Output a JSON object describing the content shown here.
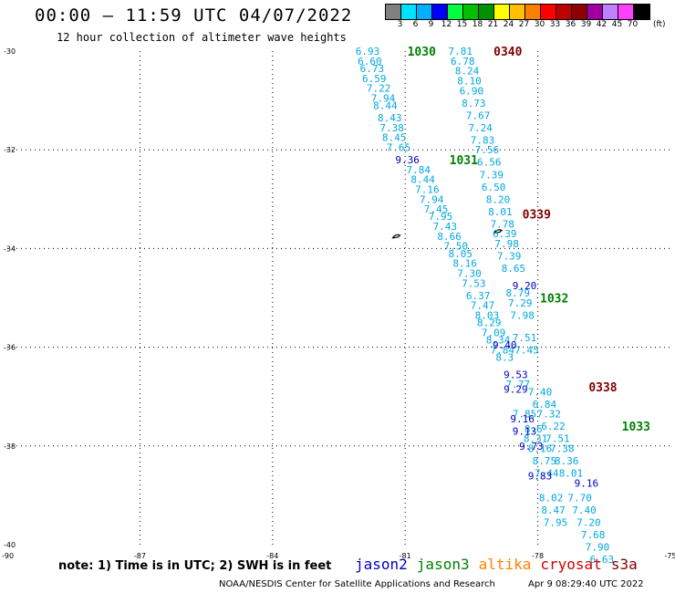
{
  "header": {
    "title": "00:00 — 11:59 UTC 04/07/2022",
    "subtitle": "12 hour collection of altimeter wave heights"
  },
  "color_scale": {
    "labels": [
      "3",
      "6",
      "9",
      "12",
      "15",
      "18",
      "21",
      "24",
      "27",
      "30",
      "33",
      "36",
      "39",
      "42",
      "45",
      "70"
    ],
    "unit": "(ft)",
    "colors": [
      "#808080",
      "#00e0ff",
      "#00b0ff",
      "#0000ff",
      "#00ff40",
      "#00c000",
      "#009000",
      "#ffff00",
      "#ffc000",
      "#ff8000",
      "#ff0000",
      "#c00000",
      "#900000",
      "#a000a0",
      "#c080ff",
      "#ff40ff",
      "#000000"
    ]
  },
  "footer": {
    "note": "note:  1)  Time is in UTC;  2)  SWH is in feet",
    "legend": [
      {
        "name": "jason2",
        "color": "#0000c0"
      },
      {
        "name": "jason3",
        "color": "#008000"
      },
      {
        "name": "altika",
        "color": "#ff8000"
      },
      {
        "name": "cryosat",
        "color": "#d00000"
      },
      {
        "name": "s3a",
        "color": "#800000"
      }
    ],
    "credit": "NOAA/NESDIS Center for Satellite Applications and Research",
    "timestamp": "Apr  9 08:29:40 UTC 2022"
  },
  "chart_data": {
    "type": "scatter",
    "title": "00:00 — 11:59 UTC 04/07/2022",
    "subtitle": "12 hour collection of altimeter wave heights",
    "xlim": [
      -90,
      -75
    ],
    "ylim": [
      -40,
      -30
    ],
    "x_ticks": [
      -90,
      -87,
      -84,
      -81,
      -78,
      -75
    ],
    "y_ticks": [
      -30,
      -32,
      -34,
      -36,
      -38,
      -40
    ],
    "grid": true,
    "coastline_marks": [
      {
        "x": -78.9,
        "y": -33.65
      },
      {
        "x": -81.2,
        "y": -33.75
      }
    ],
    "track_time_labels": [
      {
        "text": "1030",
        "color": "#008000",
        "x": -80.95,
        "y": -30.0
      },
      {
        "text": "0340",
        "color": "#800000",
        "x": -79.0,
        "y": -30.0
      },
      {
        "text": "1031",
        "color": "#008000",
        "x": -80.0,
        "y": -32.2
      },
      {
        "text": "0339",
        "color": "#800000",
        "x": -78.35,
        "y": -33.3
      },
      {
        "text": "1032",
        "color": "#008000",
        "x": -77.95,
        "y": -35.0
      },
      {
        "text": "0338",
        "color": "#800000",
        "x": -76.85,
        "y": -36.8
      },
      {
        "text": "1033",
        "color": "#008000",
        "x": -76.1,
        "y": -37.6
      }
    ],
    "series": [
      {
        "name": "jason3",
        "color": "#00a8e0",
        "points": [
          {
            "x": -81.85,
            "y": -30.0,
            "swh": "6.93"
          },
          {
            "x": -81.8,
            "y": -30.2,
            "swh": "6.60"
          },
          {
            "x": -81.75,
            "y": -30.35,
            "swh": "6.73"
          },
          {
            "x": -81.7,
            "y": -30.55,
            "swh": "6.59"
          },
          {
            "x": -81.6,
            "y": -30.75,
            "swh": "7.22"
          },
          {
            "x": -81.5,
            "y": -30.95,
            "swh": "7.94"
          },
          {
            "x": -81.45,
            "y": -31.1,
            "swh": "8.44"
          },
          {
            "x": -81.35,
            "y": -31.35,
            "swh": "8.43"
          },
          {
            "x": -81.3,
            "y": -31.55,
            "swh": "7.38"
          },
          {
            "x": -81.25,
            "y": -31.75,
            "swh": "8.45"
          },
          {
            "x": -81.15,
            "y": -31.95,
            "swh": "7.65"
          },
          {
            "x": -80.7,
            "y": -32.4,
            "swh": "7.84"
          },
          {
            "x": -80.6,
            "y": -32.6,
            "swh": "8.44"
          },
          {
            "x": -80.5,
            "y": -32.8,
            "swh": "7.16"
          },
          {
            "x": -80.4,
            "y": -33.0,
            "swh": "7.94"
          },
          {
            "x": -80.3,
            "y": -33.2,
            "swh": "7.45"
          },
          {
            "x": -80.2,
            "y": -33.35,
            "swh": "7.95"
          },
          {
            "x": -80.1,
            "y": -33.55,
            "swh": "7.43"
          },
          {
            "x": -80.0,
            "y": -33.75,
            "swh": "8.66"
          },
          {
            "x": -79.85,
            "y": -33.95,
            "swh": "7.50"
          },
          {
            "x": -79.75,
            "y": -34.1,
            "swh": "8.05"
          },
          {
            "x": -79.65,
            "y": -34.3,
            "swh": "8.16"
          },
          {
            "x": -79.55,
            "y": -34.5,
            "swh": "7.30"
          },
          {
            "x": -79.45,
            "y": -34.7,
            "swh": "7.53"
          },
          {
            "x": -79.35,
            "y": -34.95,
            "swh": "6.37"
          },
          {
            "x": -79.25,
            "y": -35.15,
            "swh": "7.47"
          },
          {
            "x": -79.15,
            "y": -35.35,
            "swh": "8.03"
          },
          {
            "x": -79.1,
            "y": -35.5,
            "swh": "8.29"
          },
          {
            "x": -79.0,
            "y": -35.7,
            "swh": "7.09"
          },
          {
            "x": -78.9,
            "y": -35.85,
            "swh": "8.34"
          },
          {
            "x": -78.8,
            "y": -36.05,
            "swh": "7.84"
          },
          {
            "x": -78.75,
            "y": -36.2,
            "swh": "8.3"
          },
          {
            "x": -78.45,
            "y": -36.75,
            "swh": "7.77"
          },
          {
            "x": -78.3,
            "y": -37.35,
            "swh": "7.85"
          },
          {
            "x": -78.1,
            "y": -37.65,
            "swh": "8.6"
          },
          {
            "x": -78.05,
            "y": -37.85,
            "swh": "8.31"
          },
          {
            "x": -77.95,
            "y": -38.05,
            "swh": "8.16"
          },
          {
            "x": -77.85,
            "y": -38.3,
            "swh": "8.75"
          },
          {
            "x": -77.8,
            "y": -38.55,
            "swh": "7.44"
          },
          {
            "x": -77.7,
            "y": -39.05,
            "swh": "8.02"
          },
          {
            "x": -77.65,
            "y": -39.3,
            "swh": "8.47"
          },
          {
            "x": -77.6,
            "y": -39.55,
            "swh": "7.95"
          }
        ]
      },
      {
        "name": "s3a",
        "color": "#00a8e0",
        "points": [
          {
            "x": -79.75,
            "y": -30.0,
            "swh": "7.81"
          },
          {
            "x": -79.7,
            "y": -30.2,
            "swh": "6.78"
          },
          {
            "x": -79.6,
            "y": -30.4,
            "swh": "8.24"
          },
          {
            "x": -79.55,
            "y": -30.6,
            "swh": "8.10"
          },
          {
            "x": -79.5,
            "y": -30.8,
            "swh": "6.90"
          },
          {
            "x": -79.45,
            "y": -31.05,
            "swh": "8.73"
          },
          {
            "x": -79.35,
            "y": -31.3,
            "swh": "7.67"
          },
          {
            "x": -79.3,
            "y": -31.55,
            "swh": "7.24"
          },
          {
            "x": -79.25,
            "y": -31.8,
            "swh": "7.83"
          },
          {
            "x": -79.15,
            "y": -32.0,
            "swh": "7.56"
          },
          {
            "x": -79.1,
            "y": -32.25,
            "swh": "6.56"
          },
          {
            "x": -79.05,
            "y": -32.5,
            "swh": "7.39"
          },
          {
            "x": -79.0,
            "y": -32.75,
            "swh": "6.50"
          },
          {
            "x": -78.9,
            "y": -33.0,
            "swh": "8.20"
          },
          {
            "x": -78.85,
            "y": -33.25,
            "swh": "8.01"
          },
          {
            "x": -78.8,
            "y": -33.5,
            "swh": "7.78"
          },
          {
            "x": -78.75,
            "y": -33.7,
            "swh": "6.39"
          },
          {
            "x": -78.7,
            "y": -33.9,
            "swh": "7.98"
          },
          {
            "x": -78.65,
            "y": -34.15,
            "swh": "7.39"
          },
          {
            "x": -78.55,
            "y": -34.4,
            "swh": "8.65"
          },
          {
            "x": -78.45,
            "y": -34.9,
            "swh": "8.79"
          },
          {
            "x": -78.4,
            "y": -35.1,
            "swh": "7.29"
          },
          {
            "x": -78.35,
            "y": -35.35,
            "swh": "7.98"
          },
          {
            "x": -78.3,
            "y": -35.8,
            "swh": "7.51"
          },
          {
            "x": -78.25,
            "y": -36.05,
            "swh": "7.45"
          },
          {
            "x": -77.95,
            "y": -36.9,
            "swh": "7.40"
          },
          {
            "x": -77.85,
            "y": -37.15,
            "swh": "6.84"
          },
          {
            "x": -77.75,
            "y": -37.35,
            "swh": "7.32"
          },
          {
            "x": -77.65,
            "y": -37.6,
            "swh": "6.22"
          },
          {
            "x": -77.55,
            "y": -37.85,
            "swh": "7.51"
          },
          {
            "x": -77.45,
            "y": -38.05,
            "swh": "7.38"
          },
          {
            "x": -77.35,
            "y": -38.3,
            "swh": "8.36"
          },
          {
            "x": -77.25,
            "y": -38.55,
            "swh": "8.01"
          },
          {
            "x": -77.05,
            "y": -39.05,
            "swh": "7.70"
          },
          {
            "x": -76.95,
            "y": -39.3,
            "swh": "7.40"
          },
          {
            "x": -76.85,
            "y": -39.55,
            "swh": "7.20"
          },
          {
            "x": -76.75,
            "y": -39.8,
            "swh": "7.68"
          },
          {
            "x": -76.65,
            "y": -40.05,
            "swh": "7.90"
          },
          {
            "x": -76.55,
            "y": -40.3,
            "swh": "6.63"
          }
        ]
      },
      {
        "name": "jason2",
        "color": "#0000c0",
        "points": [
          {
            "x": -80.95,
            "y": -32.2,
            "swh": "9.36"
          },
          {
            "x": -78.3,
            "y": -34.75,
            "swh": "9.20"
          },
          {
            "x": -78.75,
            "y": -35.95,
            "swh": "9.40"
          },
          {
            "x": -78.5,
            "y": -36.55,
            "swh": "9.53"
          },
          {
            "x": -78.5,
            "y": -36.85,
            "swh": "9.29"
          },
          {
            "x": -78.35,
            "y": -37.45,
            "swh": "9.16"
          },
          {
            "x": -78.3,
            "y": -37.7,
            "swh": "9.13"
          },
          {
            "x": -78.15,
            "y": -38.0,
            "swh": "9.73"
          },
          {
            "x": -77.95,
            "y": -38.6,
            "swh": "9.83"
          },
          {
            "x": -76.9,
            "y": -38.75,
            "swh": "9.16"
          }
        ]
      }
    ]
  }
}
